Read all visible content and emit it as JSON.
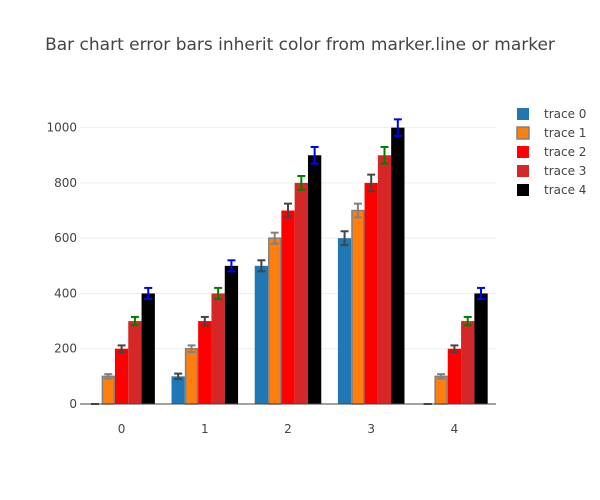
{
  "chart_data": {
    "type": "bar",
    "title": "Bar chart error bars inherit color from marker.line or marker",
    "xlabel": "",
    "ylabel": "",
    "categories": [
      "0",
      "1",
      "2",
      "3",
      "4"
    ],
    "ylim": [
      0,
      1100
    ],
    "yticks": [
      0,
      200,
      400,
      600,
      800,
      1000
    ],
    "grid": true,
    "legend_position": "top-right",
    "series": [
      {
        "name": "trace 0",
        "values": [
          0,
          100,
          500,
          600,
          0
        ],
        "errors": [
          0,
          10,
          20,
          25,
          0
        ],
        "fill": "#1f77b4",
        "line": "",
        "error_color": "#444444"
      },
      {
        "name": "trace 1",
        "values": [
          100,
          200,
          600,
          700,
          100
        ],
        "errors": [
          8,
          12,
          20,
          25,
          8
        ],
        "fill": "#ff7f0e",
        "line": "#808080",
        "error_color": "#808080"
      },
      {
        "name": "trace 2",
        "values": [
          200,
          300,
          700,
          800,
          200
        ],
        "errors": [
          12,
          15,
          25,
          30,
          12
        ],
        "fill": "#ff0000",
        "line": "",
        "error_color": "#444444"
      },
      {
        "name": "trace 3",
        "values": [
          300,
          400,
          800,
          900,
          300
        ],
        "errors": [
          15,
          20,
          25,
          30,
          15
        ],
        "fill": "#d62728",
        "line": "",
        "error_color": "#008000"
      },
      {
        "name": "trace 4",
        "values": [
          400,
          500,
          900,
          1000,
          400
        ],
        "errors": [
          20,
          20,
          30,
          30,
          20
        ],
        "fill": "#000000",
        "line": "",
        "error_color": "#0000ff"
      }
    ]
  }
}
